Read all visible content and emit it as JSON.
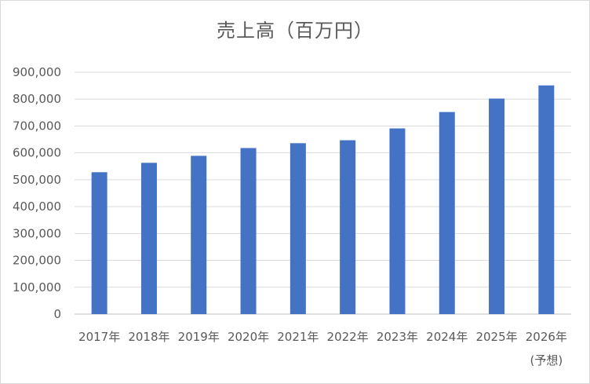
{
  "chart_data": {
    "type": "bar",
    "title": "売上高（百万円）",
    "xlabel": "",
    "ylabel": "",
    "categories": [
      "2017年",
      "2018年",
      "2019年",
      "2020年",
      "2021年",
      "2022年",
      "2023年",
      "2024年",
      "2025年",
      "2026年"
    ],
    "category_notes": [
      "",
      "",
      "",
      "",
      "",
      "",
      "",
      "",
      "",
      "(予想)"
    ],
    "series": [
      {
        "values": [
          528000,
          563000,
          589000,
          618000,
          636000,
          647000,
          691000,
          752000,
          802000,
          851000
        ]
      }
    ],
    "ylim": [
      0,
      900000
    ],
    "ytick_step": 100000,
    "ytick_labels": [
      "0",
      "100,000",
      "200,000",
      "300,000",
      "400,000",
      "500,000",
      "600,000",
      "700,000",
      "800,000",
      "900,000"
    ],
    "grid": true,
    "legend": "none",
    "colors": {
      "bar": "#4472C4",
      "grid": "#D9D9D9",
      "text": "#595959"
    }
  }
}
